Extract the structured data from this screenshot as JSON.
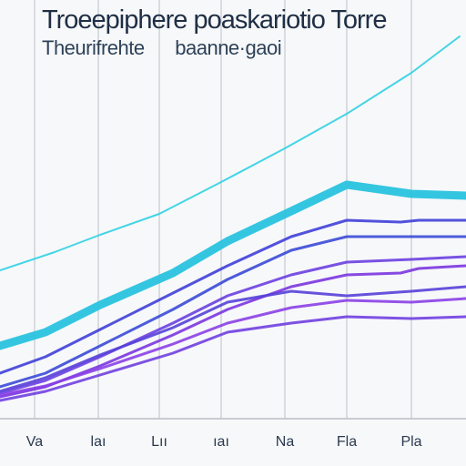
{
  "header": {
    "title": "Troeepiphere poaskariotio Torre",
    "subtitle_left": "Theurifrehte",
    "subtitle_right": "baanne·gaoi"
  },
  "colors": {
    "background": "#f7f8fa",
    "grid": "#c9ccd2",
    "series": [
      "#2fd0e3",
      "#29c3de",
      "#3f3fd8",
      "#3a4ad6",
      "#6a3fe0",
      "#7a35df",
      "#5540d8",
      "#8a3fe6",
      "#6f3fe0"
    ]
  },
  "chart_data": {
    "type": "line",
    "title": "Troeepiphere poaskariotio Torre",
    "xlabel": "",
    "ylabel": "",
    "grid": true,
    "xlim": [
      0,
      512
    ],
    "ylim": [
      0,
      460
    ],
    "x_ticks": [
      {
        "x": 38,
        "label": "Va"
      },
      {
        "x": 108,
        "label": "laı"
      },
      {
        "x": 175,
        "label": "Lıı"
      },
      {
        "x": 243,
        "label": "ıaı"
      },
      {
        "x": 313,
        "label": "Na"
      },
      {
        "x": 381,
        "label": "Fla"
      },
      {
        "x": 452,
        "label": "Pla"
      }
    ],
    "series": [
      {
        "x": [
          0,
          60,
          110,
          175,
          243,
          313,
          381,
          452,
          505
        ],
        "values": [
          163,
          183,
          202,
          225,
          260,
          297,
          335,
          380,
          420
        ],
        "width": 2
      },
      {
        "x": [
          0,
          50,
          110,
          190,
          250,
          320,
          381,
          452,
          512
        ],
        "values": [
          80,
          95,
          125,
          160,
          195,
          228,
          257,
          247,
          245
        ],
        "width": 9
      },
      {
        "x": [
          0,
          50,
          110,
          190,
          250,
          320,
          381,
          440,
          460,
          512
        ],
        "values": [
          50,
          68,
          98,
          138,
          168,
          200,
          218,
          216,
          218,
          218
        ],
        "width": 3
      },
      {
        "x": [
          0,
          50,
          110,
          190,
          250,
          320,
          381,
          452,
          512
        ],
        "values": [
          35,
          50,
          80,
          120,
          153,
          185,
          200,
          200,
          200
        ],
        "width": 3
      },
      {
        "x": [
          0,
          50,
          110,
          190,
          250,
          320,
          381,
          452,
          512
        ],
        "values": [
          28,
          42,
          68,
          105,
          135,
          158,
          172,
          175,
          178
        ],
        "width": 3
      },
      {
        "x": [
          0,
          50,
          110,
          190,
          250,
          320,
          381,
          440,
          460,
          512
        ],
        "values": [
          24,
          35,
          58,
          92,
          120,
          145,
          158,
          160,
          165,
          168
        ],
        "width": 3
      },
      {
        "x": [
          0,
          50,
          110,
          190,
          250,
          320,
          381,
          452,
          512
        ],
        "values": [
          30,
          45,
          70,
          100,
          128,
          140,
          135,
          140,
          145
        ],
        "width": 3
      },
      {
        "x": [
          0,
          50,
          110,
          190,
          250,
          320,
          381,
          452,
          512
        ],
        "values": [
          26,
          36,
          55,
          82,
          105,
          122,
          130,
          128,
          132
        ],
        "width": 3
      },
      {
        "x": [
          0,
          50,
          110,
          190,
          250,
          320,
          381,
          452,
          512
        ],
        "values": [
          20,
          30,
          48,
          72,
          95,
          105,
          112,
          110,
          112
        ],
        "width": 3
      }
    ]
  }
}
